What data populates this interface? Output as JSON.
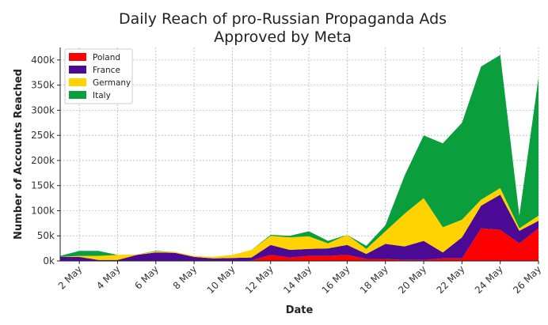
{
  "chart_data": {
    "type": "area",
    "stacked": true,
    "title": "Daily Reach of pro-Russian Propaganda Ads",
    "subtitle": "Approved by Meta",
    "xlabel": "Date",
    "ylabel": "Number of Accounts Reached",
    "ylim": [
      0,
      425000
    ],
    "yticks": [
      0,
      50000,
      100000,
      150000,
      200000,
      250000,
      300000,
      350000,
      400000
    ],
    "ytick_labels": [
      "0k",
      "50k",
      "100k",
      "150k",
      "200k",
      "250k",
      "300k",
      "350k",
      "400k"
    ],
    "xlim": [
      1,
      26
    ],
    "xticks": [
      2,
      4,
      6,
      8,
      10,
      12,
      14,
      16,
      18,
      20,
      22,
      24,
      26
    ],
    "xtick_labels": [
      "2 May",
      "4 May",
      "6 May",
      "8 May",
      "10 May",
      "12 May",
      "14 May",
      "16 May",
      "18 May",
      "20 May",
      "22 May",
      "24 May",
      "26 May"
    ],
    "grid": true,
    "legend_position": "top-left",
    "x": [
      1,
      2,
      3,
      4,
      5,
      6,
      7,
      8,
      9,
      10,
      11,
      12,
      13,
      14,
      15,
      16,
      17,
      18,
      19,
      20,
      21,
      22,
      23,
      24,
      25,
      26
    ],
    "series": [
      {
        "name": "Poland",
        "color": "#ff0000",
        "values": [
          0,
          0,
          0,
          0,
          0,
          0,
          0,
          0,
          0,
          0,
          1000,
          12000,
          7000,
          10000,
          10000,
          12000,
          4000,
          4000,
          2000,
          2000,
          5000,
          5000,
          65000,
          62000,
          35000,
          65000
        ]
      },
      {
        "name": "France",
        "color": "#4b0a96",
        "values": [
          8000,
          8000,
          2000,
          2000,
          12000,
          17000,
          16000,
          8000,
          5000,
          6000,
          6000,
          20000,
          15000,
          14000,
          15000,
          20000,
          10000,
          30000,
          27000,
          38000,
          12000,
          42000,
          45000,
          70000,
          25000,
          15000
        ]
      },
      {
        "name": "Germany",
        "color": "#ffd200",
        "values": [
          0,
          2000,
          8000,
          10000,
          1000,
          2000,
          2000,
          2000,
          3000,
          6000,
          15000,
          18000,
          25000,
          25000,
          10000,
          20000,
          10000,
          25000,
          65000,
          85000,
          50000,
          35000,
          12000,
          13000,
          5000,
          10000
        ]
      },
      {
        "name": "Italy",
        "color": "#0a9f3c",
        "values": [
          2000,
          10000,
          10000,
          0,
          0,
          1000,
          0,
          0,
          0,
          0,
          0,
          2000,
          3000,
          10000,
          5000,
          0,
          6000,
          12000,
          76000,
          125000,
          167000,
          193000,
          265000,
          265000,
          25000,
          275000
        ]
      }
    ]
  }
}
